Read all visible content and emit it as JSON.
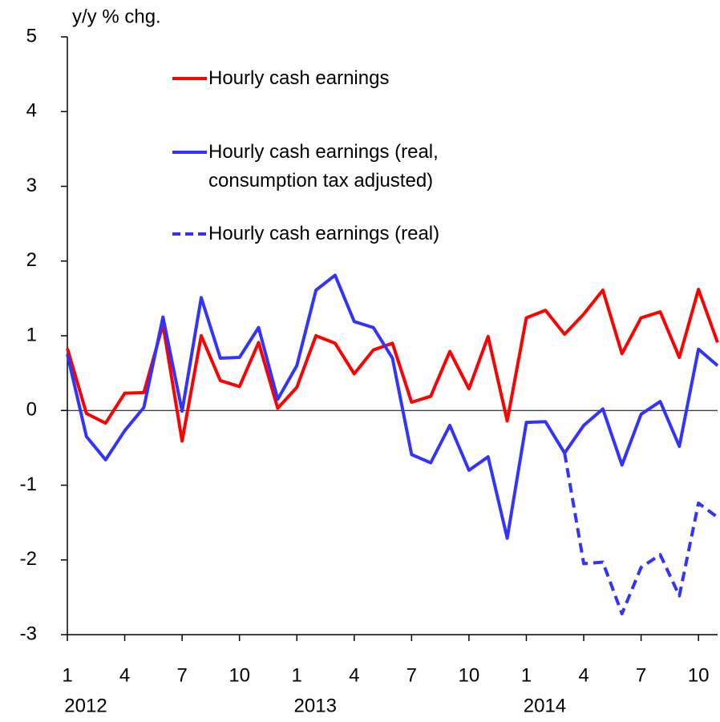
{
  "chart_data": {
    "type": "line",
    "y_label": "y/y % chg.",
    "categories": [
      "1",
      null,
      null,
      "4",
      null,
      null,
      "7",
      null,
      null,
      "10",
      null,
      null,
      "1",
      null,
      null,
      "4",
      null,
      null,
      "7",
      null,
      null,
      "10",
      null,
      null,
      "1",
      null,
      null,
      "4",
      null,
      null,
      "7",
      null,
      null,
      "10",
      null
    ],
    "x_groups": [
      "2012",
      "2013",
      "2014"
    ],
    "ylim": [
      -3,
      5
    ],
    "yticks": [
      -3,
      -2,
      -1,
      0,
      1,
      2,
      3,
      4,
      5
    ],
    "series": [
      {
        "name": "Hourly cash earnings",
        "color": "#ff0000",
        "style": "solid",
        "values": [
          0.83,
          -0.04,
          -0.17,
          0.23,
          0.24,
          1.15,
          -0.41,
          1.0,
          0.4,
          0.32,
          0.91,
          0.03,
          0.31,
          1.0,
          0.9,
          0.49,
          0.81,
          0.9,
          0.11,
          0.19,
          0.79,
          0.29,
          0.99,
          -0.14,
          1.24,
          1.34,
          1.02,
          1.29,
          1.61,
          0.76,
          1.24,
          1.32,
          0.71,
          1.62,
          0.91
        ]
      },
      {
        "name": "Hourly cash earnings (real, consumption tax adjusted)",
        "color": "#3333ff",
        "style": "solid",
        "values": [
          0.75,
          -0.35,
          -0.66,
          -0.27,
          0.04,
          1.25,
          -0.01,
          1.51,
          0.7,
          0.71,
          1.11,
          0.15,
          0.6,
          1.61,
          1.81,
          1.19,
          1.11,
          0.7,
          -0.59,
          -0.7,
          -0.2,
          -0.8,
          -0.62,
          -1.71,
          -0.16,
          -0.15,
          -0.57,
          -0.2,
          0.02,
          -0.73,
          -0.05,
          0.12,
          -0.48,
          0.82,
          0.6
        ]
      },
      {
        "name": "Hourly cash earnings (real)",
        "color": "#3333ff",
        "style": "dashed",
        "values": [
          null,
          null,
          null,
          null,
          null,
          null,
          null,
          null,
          null,
          null,
          null,
          null,
          null,
          null,
          null,
          null,
          null,
          null,
          null,
          null,
          null,
          null,
          null,
          null,
          null,
          null,
          -0.57,
          -2.05,
          -2.03,
          -2.72,
          -2.1,
          -1.93,
          -2.48,
          -1.24,
          -1.43
        ]
      }
    ]
  }
}
